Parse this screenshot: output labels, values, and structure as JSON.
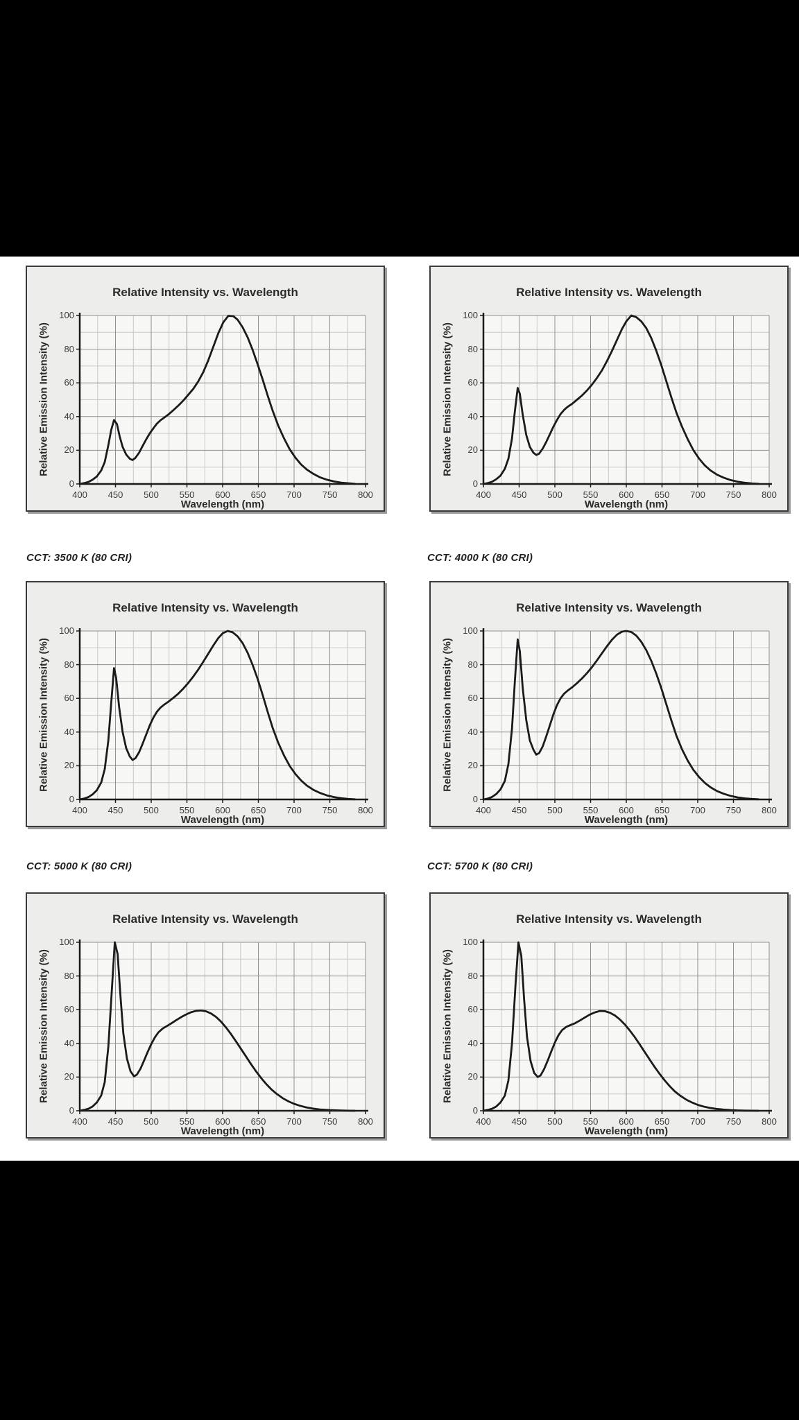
{
  "colors": {
    "letterbox": "#000000",
    "page_bg": "#ffffff",
    "panel_bg": "#ededeb",
    "plot_bg": "#f7f7f5",
    "grid_minor": "#c9c9c9",
    "grid_major": "#8f8f8f",
    "axis": "#1a1a1a",
    "curve": "#1b1b1b",
    "border": "#3a3a3a",
    "shadow": "#9b9b9b",
    "text": "#2b2b2b",
    "tick_text": "#3a3a3a",
    "caption_color": "#1f1f1f"
  },
  "captions": {
    "between_rows_1_2": [
      "CCT: 3500 K (80 CRI)",
      "CCT: 4000 K (80 CRI)"
    ],
    "between_rows_2_3": [
      "CCT: 5000 K (80 CRI)",
      "CCT: 5700 K (80 CRI)"
    ]
  },
  "chart_common": {
    "title": "Relative Intensity vs. Wavelength",
    "xlabel": "Wavelength (nm)",
    "ylabel": "Relative Emission Intensity (%)",
    "xlim": [
      400,
      800
    ],
    "ylim": [
      0,
      100
    ],
    "x_ticks": [
      400,
      450,
      500,
      550,
      600,
      650,
      700,
      750,
      800
    ],
    "y_ticks": [
      0,
      20,
      40,
      60,
      80,
      100
    ],
    "x_minor_step": 25,
    "y_minor_step": 10,
    "grid": true,
    "legend": false
  },
  "chart_data": [
    {
      "type": "line",
      "position": "row-1-left",
      "grid_row": 1,
      "grid_col": 1,
      "series_name": "relative-intensity",
      "x": [
        400,
        406,
        412,
        418,
        424,
        430,
        435,
        440,
        444,
        448,
        452,
        456,
        460,
        465,
        470,
        474,
        478,
        483,
        488,
        493,
        498,
        503,
        508,
        513,
        518,
        524,
        531,
        538,
        545,
        552,
        559,
        566,
        573,
        580,
        587,
        594,
        601,
        608,
        615,
        621,
        628,
        635,
        642,
        649,
        656,
        663,
        670,
        678,
        686,
        694,
        702,
        710,
        718,
        727,
        736,
        746,
        756,
        766,
        776,
        785
      ],
      "y": [
        0,
        0.5,
        1.2,
        2.5,
        4.5,
        8,
        13,
        23,
        32,
        38,
        35.5,
        28,
        22,
        17.5,
        15,
        14.2,
        15.5,
        18.5,
        22.5,
        26.5,
        30,
        33,
        35.8,
        37.8,
        39.3,
        41.2,
        43.8,
        46.5,
        49.5,
        53,
        56.5,
        61,
        66.5,
        73.5,
        81.5,
        89.5,
        96,
        99.8,
        99.6,
        97.5,
        93,
        87,
        79.5,
        71,
        62,
        52.5,
        43.5,
        34.5,
        27,
        20.5,
        15.5,
        11.5,
        8.5,
        6,
        4,
        2.5,
        1.5,
        0.8,
        0.4,
        0.1
      ]
    },
    {
      "type": "line",
      "position": "row-1-right",
      "grid_row": 1,
      "grid_col": 2,
      "series_name": "relative-intensity",
      "x": [
        400,
        406,
        412,
        418,
        424,
        430,
        435,
        440,
        444,
        448,
        451,
        455,
        460,
        465,
        470,
        474,
        478,
        483,
        488,
        493,
        498,
        503,
        508,
        513,
        518,
        524,
        531,
        538,
        545,
        552,
        559,
        566,
        573,
        580,
        587,
        594,
        600,
        607,
        614,
        621,
        628,
        635,
        642,
        649,
        656,
        663,
        670,
        678,
        686,
        694,
        702,
        710,
        718,
        727,
        736,
        746,
        756,
        766,
        776,
        785
      ],
      "y": [
        0,
        0.5,
        1.3,
        2.8,
        5,
        9,
        15,
        27,
        43,
        57,
        53.5,
        41,
        29,
        22,
        18.5,
        17.2,
        18,
        21,
        25,
        29.5,
        34,
        38,
        41.5,
        44,
        45.8,
        47.5,
        50,
        52.5,
        55.5,
        59,
        63,
        67.5,
        73,
        79,
        85.5,
        92,
        96.5,
        100,
        99,
        96.5,
        92.5,
        86.5,
        79,
        70.5,
        61,
        51.5,
        42.5,
        34,
        26.5,
        20,
        15,
        11,
        8,
        5.5,
        3.8,
        2.3,
        1.3,
        0.7,
        0.3,
        0.1
      ]
    },
    {
      "type": "line",
      "position": "row-2-left",
      "grid_row": 2,
      "grid_col": 1,
      "series_name": "relative-intensity",
      "x": [
        400,
        406,
        412,
        418,
        424,
        430,
        435,
        440,
        444,
        448,
        451,
        455,
        460,
        465,
        470,
        474,
        478,
        483,
        488,
        493,
        498,
        503,
        508,
        513,
        518,
        524,
        531,
        538,
        545,
        552,
        559,
        566,
        573,
        580,
        587,
        594,
        600,
        607,
        614,
        621,
        628,
        635,
        642,
        649,
        656,
        663,
        670,
        678,
        686,
        694,
        702,
        710,
        718,
        727,
        736,
        746,
        756,
        766,
        776,
        785
      ],
      "y": [
        0,
        0.5,
        1.4,
        3,
        5.5,
        10,
        18,
        35,
        57,
        78,
        72,
        55,
        40,
        30.5,
        25.5,
        23.4,
        24.5,
        28,
        33,
        38.5,
        44,
        48.5,
        52,
        54.5,
        56.2,
        58,
        60.3,
        62.8,
        65.8,
        69.2,
        73,
        77.2,
        81.8,
        86.6,
        91.4,
        95.8,
        98.6,
        100,
        99.2,
        96.8,
        92.8,
        87,
        79.8,
        71.5,
        62,
        52,
        42.5,
        33.5,
        26,
        19.8,
        15,
        11.2,
        8.2,
        5.7,
        3.9,
        2.4,
        1.4,
        0.7,
        0.3,
        0.1
      ]
    },
    {
      "type": "line",
      "position": "row-2-right",
      "grid_row": 2,
      "grid_col": 2,
      "series_name": "relative-intensity",
      "x": [
        400,
        406,
        412,
        418,
        424,
        430,
        435,
        440,
        444,
        448,
        451,
        455,
        460,
        465,
        470,
        474,
        478,
        483,
        488,
        493,
        498,
        503,
        508,
        513,
        518,
        524,
        531,
        538,
        545,
        552,
        559,
        566,
        573,
        580,
        587,
        594,
        600,
        607,
        614,
        621,
        628,
        635,
        642,
        649,
        656,
        663,
        670,
        678,
        686,
        694,
        702,
        710,
        718,
        727,
        736,
        746,
        756,
        766,
        776,
        785
      ],
      "y": [
        0,
        0.5,
        1.5,
        3.2,
        6,
        11,
        21,
        42,
        70,
        95,
        88,
        66,
        47,
        35,
        29.5,
        26.6,
        27.5,
        31.5,
        37.5,
        44,
        50.5,
        56,
        60,
        62.8,
        64.6,
        66.5,
        69,
        71.8,
        75,
        78.6,
        82.6,
        86.8,
        91,
        94.8,
        97.8,
        99.6,
        100,
        99.4,
        97.2,
        93.6,
        88.6,
        82.2,
        74.6,
        66,
        56.5,
        47,
        38,
        29.8,
        23,
        17.5,
        13.2,
        9.8,
        7.2,
        5,
        3.4,
        2.1,
        1.2,
        0.6,
        0.3,
        0.1
      ]
    },
    {
      "type": "line",
      "position": "row-3-left",
      "grid_row": 3,
      "grid_col": 1,
      "series_name": "relative-intensity",
      "x": [
        400,
        406,
        412,
        418,
        424,
        430,
        435,
        440,
        445,
        449,
        453,
        457,
        461,
        466,
        471,
        476,
        480,
        485,
        490,
        495,
        500,
        505,
        510,
        516,
        522,
        528,
        535,
        542,
        549,
        556,
        563,
        570,
        577,
        584,
        591,
        598,
        605,
        612,
        619,
        626,
        633,
        640,
        647,
        654,
        661,
        668,
        676,
        684,
        692,
        700,
        708,
        717,
        726,
        736,
        746,
        756,
        766,
        776,
        785
      ],
      "y": [
        0,
        0.5,
        1.2,
        2.5,
        5,
        9,
        17,
        38,
        72,
        100,
        93,
        68,
        46,
        31,
        23.5,
        20.4,
        21.5,
        25,
        29.8,
        34.8,
        39.5,
        43.5,
        46.5,
        48.8,
        50.3,
        51.8,
        53.8,
        55.6,
        57.2,
        58.5,
        59.3,
        59.5,
        59,
        57.7,
        55.6,
        52.8,
        49.3,
        45.3,
        41,
        36.5,
        32,
        27.5,
        23.3,
        19.4,
        15.9,
        12.8,
        9.9,
        7.5,
        5.6,
        4.1,
        3,
        2,
        1.3,
        0.8,
        0.5,
        0.3,
        0.15,
        0.05,
        0
      ]
    },
    {
      "type": "line",
      "position": "row-3-right",
      "grid_row": 3,
      "grid_col": 2,
      "series_name": "relative-intensity",
      "x": [
        400,
        406,
        412,
        418,
        424,
        430,
        435,
        440,
        445,
        449,
        453,
        457,
        461,
        466,
        471,
        476,
        480,
        485,
        490,
        495,
        500,
        505,
        510,
        516,
        522,
        528,
        535,
        542,
        549,
        556,
        563,
        570,
        577,
        584,
        591,
        598,
        605,
        612,
        619,
        626,
        633,
        640,
        647,
        654,
        661,
        668,
        676,
        684,
        692,
        700,
        708,
        717,
        726,
        736,
        746,
        756,
        766,
        776,
        785
      ],
      "y": [
        0,
        0.5,
        1.2,
        2.5,
        5,
        9,
        18,
        40,
        75,
        100,
        92,
        66,
        44,
        29.5,
        22.5,
        20,
        21,
        24.8,
        29.8,
        35.2,
        40.5,
        44.8,
        47.8,
        49.8,
        50.9,
        51.9,
        53.6,
        55.4,
        57.1,
        58.4,
        59.2,
        59.1,
        58.2,
        56.6,
        54.2,
        51.2,
        47.6,
        43.6,
        39.2,
        34.7,
        30.2,
        25.8,
        21.7,
        17.9,
        14.5,
        11.5,
        8.8,
        6.6,
        4.9,
        3.5,
        2.5,
        1.7,
        1.1,
        0.7,
        0.4,
        0.2,
        0.1,
        0.05,
        0
      ]
    }
  ]
}
